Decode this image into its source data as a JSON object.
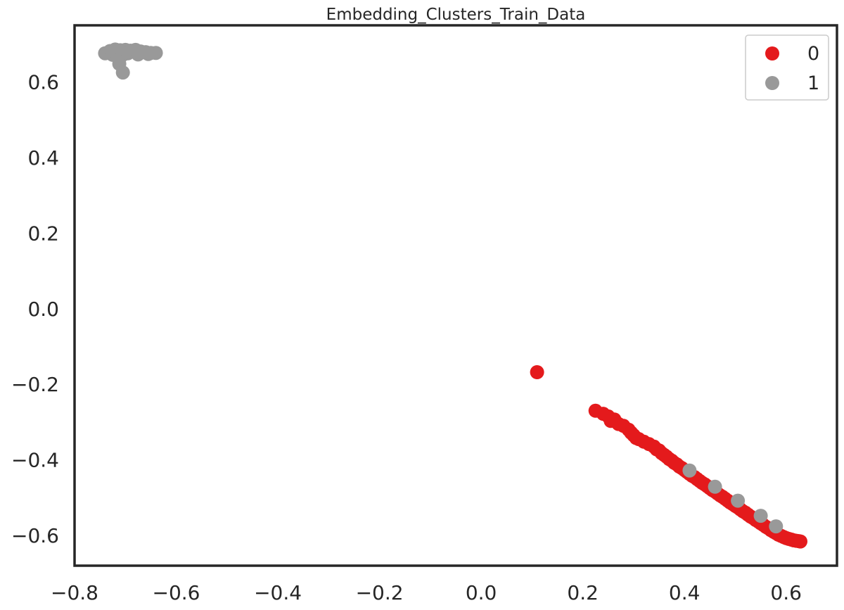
{
  "chart_data": {
    "type": "scatter",
    "title": "Embedding_Clusters_Train_Data",
    "xlabel": "",
    "ylabel": "",
    "xlim": [
      -0.8,
      0.7
    ],
    "ylim": [
      -0.68,
      0.75
    ],
    "xticks": [
      -0.8,
      -0.6,
      -0.4,
      -0.2,
      0.0,
      0.2,
      0.4,
      0.6
    ],
    "xtick_labels": [
      "−0.8",
      "−0.6",
      "−0.4",
      "−0.2",
      "0.0",
      "0.2",
      "0.4",
      "0.6"
    ],
    "yticks": [
      -0.6,
      -0.4,
      -0.2,
      0.0,
      0.2,
      0.4,
      0.6
    ],
    "ytick_labels": [
      "−0.6",
      "−0.4",
      "−0.2",
      "0.0",
      "0.2",
      "0.4",
      "0.6"
    ],
    "grid": false,
    "legend": {
      "placement": "top-right",
      "labels": [
        "0",
        "1"
      ]
    },
    "series": [
      {
        "name": "0",
        "color": "#e41a1c",
        "points": [
          [
            0.11,
            -0.168
          ],
          [
            0.225,
            -0.27
          ],
          [
            0.24,
            -0.278
          ],
          [
            0.25,
            -0.285
          ],
          [
            0.255,
            -0.297
          ],
          [
            0.262,
            -0.293
          ],
          [
            0.27,
            -0.305
          ],
          [
            0.28,
            -0.31
          ],
          [
            0.29,
            -0.32
          ],
          [
            0.295,
            -0.328
          ],
          [
            0.3,
            -0.335
          ],
          [
            0.305,
            -0.342
          ],
          [
            0.31,
            -0.345
          ],
          [
            0.32,
            -0.352
          ],
          [
            0.33,
            -0.358
          ],
          [
            0.34,
            -0.365
          ],
          [
            0.345,
            -0.372
          ],
          [
            0.35,
            -0.375
          ],
          [
            0.355,
            -0.382
          ],
          [
            0.36,
            -0.387
          ],
          [
            0.365,
            -0.392
          ],
          [
            0.37,
            -0.398
          ],
          [
            0.375,
            -0.402
          ],
          [
            0.38,
            -0.408
          ],
          [
            0.385,
            -0.412
          ],
          [
            0.39,
            -0.418
          ],
          [
            0.395,
            -0.422
          ],
          [
            0.4,
            -0.427
          ],
          [
            0.405,
            -0.432
          ],
          [
            0.41,
            -0.437
          ],
          [
            0.415,
            -0.442
          ],
          [
            0.42,
            -0.446
          ],
          [
            0.425,
            -0.451
          ],
          [
            0.43,
            -0.456
          ],
          [
            0.435,
            -0.461
          ],
          [
            0.44,
            -0.465
          ],
          [
            0.445,
            -0.47
          ],
          [
            0.45,
            -0.475
          ],
          [
            0.455,
            -0.48
          ],
          [
            0.46,
            -0.484
          ],
          [
            0.465,
            -0.489
          ],
          [
            0.47,
            -0.494
          ],
          [
            0.475,
            -0.498
          ],
          [
            0.48,
            -0.503
          ],
          [
            0.485,
            -0.508
          ],
          [
            0.49,
            -0.513
          ],
          [
            0.495,
            -0.517
          ],
          [
            0.5,
            -0.522
          ],
          [
            0.505,
            -0.526
          ],
          [
            0.51,
            -0.531
          ],
          [
            0.515,
            -0.536
          ],
          [
            0.52,
            -0.54
          ],
          [
            0.525,
            -0.545
          ],
          [
            0.53,
            -0.55
          ],
          [
            0.535,
            -0.554
          ],
          [
            0.54,
            -0.559
          ],
          [
            0.545,
            -0.563
          ],
          [
            0.55,
            -0.568
          ],
          [
            0.555,
            -0.572
          ],
          [
            0.56,
            -0.577
          ],
          [
            0.565,
            -0.581
          ],
          [
            0.57,
            -0.586
          ],
          [
            0.575,
            -0.59
          ],
          [
            0.58,
            -0.594
          ],
          [
            0.585,
            -0.598
          ],
          [
            0.59,
            -0.601
          ],
          [
            0.595,
            -0.604
          ],
          [
            0.6,
            -0.607
          ],
          [
            0.605,
            -0.609
          ],
          [
            0.61,
            -0.611
          ],
          [
            0.615,
            -0.613
          ],
          [
            0.62,
            -0.614
          ],
          [
            0.625,
            -0.615
          ],
          [
            0.628,
            -0.616
          ]
        ]
      },
      {
        "name": "1",
        "color": "#999999",
        "points": [
          [
            -0.74,
            0.676
          ],
          [
            -0.73,
            0.682
          ],
          [
            -0.72,
            0.686
          ],
          [
            -0.71,
            0.684
          ],
          [
            -0.7,
            0.685
          ],
          [
            -0.69,
            0.683
          ],
          [
            -0.68,
            0.685
          ],
          [
            -0.67,
            0.681
          ],
          [
            -0.66,
            0.679
          ],
          [
            -0.65,
            0.677
          ],
          [
            -0.64,
            0.677
          ],
          [
            -0.725,
            0.672
          ],
          [
            -0.715,
            0.666
          ],
          [
            -0.705,
            0.672
          ],
          [
            -0.695,
            0.676
          ],
          [
            -0.675,
            0.673
          ],
          [
            -0.655,
            0.674
          ],
          [
            -0.712,
            0.648
          ],
          [
            -0.705,
            0.625
          ],
          [
            0.41,
            -0.428
          ],
          [
            0.46,
            -0.471
          ],
          [
            0.505,
            -0.508
          ],
          [
            0.55,
            -0.548
          ],
          [
            0.58,
            -0.576
          ]
        ]
      }
    ]
  }
}
